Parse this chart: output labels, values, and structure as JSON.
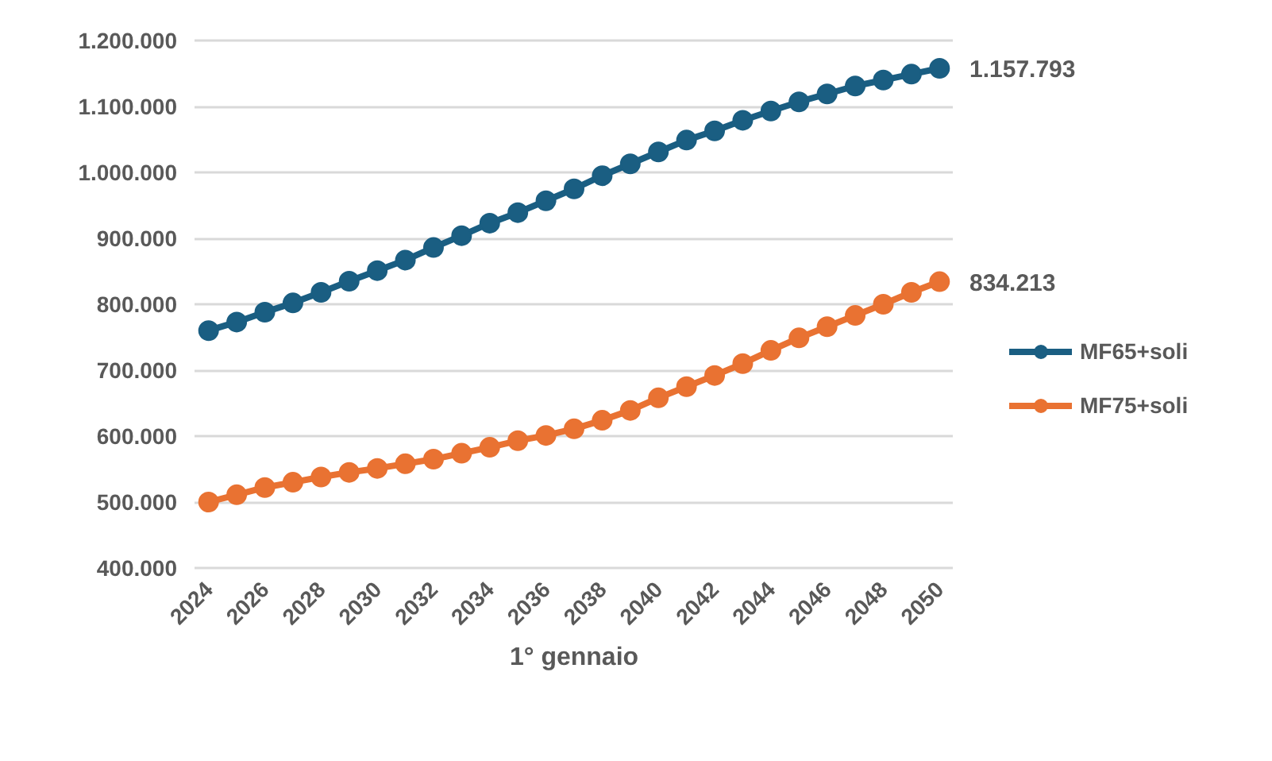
{
  "chart_data": {
    "type": "line",
    "xlabel": "1° gennaio",
    "x": [
      2024,
      2025,
      2026,
      2027,
      2028,
      2029,
      2030,
      2031,
      2032,
      2033,
      2034,
      2035,
      2036,
      2037,
      2038,
      2039,
      2040,
      2041,
      2042,
      2043,
      2044,
      2045,
      2046,
      2047,
      2048,
      2049,
      2050
    ],
    "series": [
      {
        "name": "MF65+soli",
        "color": "#1a5e82",
        "values": [
          760000,
          773000,
          788000,
          802000,
          818000,
          835000,
          851000,
          867000,
          886000,
          904000,
          923000,
          939000,
          957000,
          975000,
          995000,
          1013000,
          1031000,
          1049000,
          1063000,
          1079000,
          1093000,
          1107000,
          1119000,
          1131000,
          1140000,
          1149000,
          1157793
        ],
        "value_labels": [
          null,
          null,
          null,
          null,
          null,
          null,
          null,
          null,
          null,
          null,
          null,
          null,
          null,
          null,
          null,
          null,
          null,
          null,
          null,
          null,
          null,
          null,
          null,
          null,
          null,
          null,
          "1.157.793"
        ]
      },
      {
        "name": "MF75+soli",
        "color": "#e97232",
        "values": [
          500000,
          511000,
          522000,
          530000,
          538000,
          545000,
          551000,
          558000,
          565000,
          574000,
          583000,
          593000,
          601000,
          611000,
          624000,
          639000,
          658000,
          675000,
          692000,
          710000,
          730000,
          749000,
          766000,
          783000,
          800000,
          818000,
          834213
        ],
        "value_labels": [
          null,
          null,
          null,
          null,
          null,
          null,
          null,
          null,
          null,
          null,
          null,
          null,
          null,
          null,
          null,
          null,
          null,
          null,
          null,
          null,
          null,
          null,
          null,
          null,
          null,
          null,
          "834.213"
        ]
      }
    ],
    "xlim": [
      2023.5,
      2050.5
    ],
    "xticks": [
      2024,
      2026,
      2028,
      2030,
      2032,
      2034,
      2036,
      2038,
      2040,
      2042,
      2044,
      2046,
      2048,
      2050
    ],
    "ylim": [
      400000,
      1200000
    ],
    "yticks": [
      {
        "value": 400000,
        "label": "400.000"
      },
      {
        "value": 500000,
        "label": "500.000"
      },
      {
        "value": 600000,
        "label": "600.000"
      },
      {
        "value": 700000,
        "label": "700.000"
      },
      {
        "value": 800000,
        "label": "800.000"
      },
      {
        "value": 900000,
        "label": "900.000"
      },
      {
        "value": 1000000,
        "label": "1.000.000"
      },
      {
        "value": 1100000,
        "label": "1.100.000"
      },
      {
        "value": 1200000,
        "label": "1.200.000"
      }
    ],
    "grid": "y",
    "legend": "right",
    "marker": "circle",
    "line_style": "solid"
  }
}
